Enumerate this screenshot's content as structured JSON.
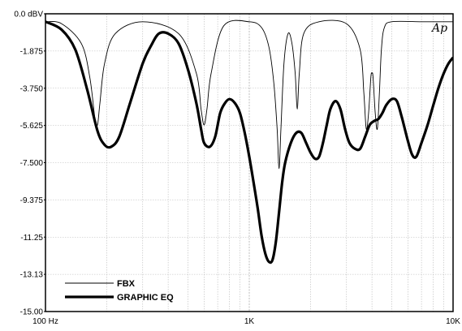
{
  "chart_data": {
    "type": "line",
    "xscale": "log",
    "xlim": [
      100,
      10000
    ],
    "ylim": [
      -15.0,
      0.0
    ],
    "y_tick_labels": [
      "0.0 dBV",
      "-1.875",
      "-3.750",
      "-5.625",
      "-7.500",
      "-9.375",
      "-11.25",
      "-13.13",
      "-15.00"
    ],
    "x_tick_labels": [
      "100 Hz",
      "1K",
      "10K"
    ],
    "grid": true,
    "legend_position": "bottom-left",
    "watermark": "Ap",
    "series": [
      {
        "name": "FBX",
        "style": "thin",
        "x": [
          100,
          120,
          150,
          165,
          175,
          180,
          185,
          195,
          220,
          300,
          450,
          550,
          580,
          600,
          620,
          650,
          750,
          1000,
          1150,
          1250,
          1320,
          1370,
          1400,
          1430,
          1480,
          1550,
          1620,
          1680,
          1720,
          1760,
          1850,
          2200,
          3000,
          3500,
          3650,
          3750,
          3850,
          3950,
          4000,
          4050,
          4150,
          4250,
          4350,
          4450,
          4600,
          5000,
          7000,
          10000
        ],
        "y": [
          -0.4,
          -0.5,
          -1.5,
          -3.2,
          -5.3,
          -5.6,
          -4.5,
          -2.5,
          -1.0,
          -0.4,
          -1.0,
          -3.0,
          -4.8,
          -5.6,
          -4.8,
          -3.0,
          -0.6,
          -0.4,
          -0.7,
          -1.7,
          -3.5,
          -5.8,
          -7.8,
          -5.8,
          -2.5,
          -1.0,
          -1.5,
          -3.0,
          -4.8,
          -3.0,
          -1.0,
          -0.4,
          -0.5,
          -1.8,
          -4.0,
          -5.8,
          -5.0,
          -3.2,
          -3.0,
          -3.2,
          -5.0,
          -5.8,
          -4.0,
          -1.8,
          -0.7,
          -0.4,
          -0.4,
          -0.4
        ]
      },
      {
        "name": "GRAPHIC EQ",
        "style": "thick",
        "x": [
          100,
          120,
          140,
          160,
          180,
          195,
          210,
          230,
          260,
          300,
          330,
          360,
          400,
          450,
          500,
          550,
          580,
          600,
          640,
          680,
          720,
          760,
          800,
          850,
          900,
          950,
          1000,
          1050,
          1100,
          1150,
          1200,
          1250,
          1300,
          1350,
          1400,
          1450,
          1500,
          1600,
          1700,
          1800,
          1900,
          2000,
          2100,
          2200,
          2300,
          2400,
          2500,
          2650,
          2800,
          2950,
          3100,
          3300,
          3500,
          3700,
          3900,
          4100,
          4300,
          4500,
          4700,
          5000,
          5300,
          5600,
          6000,
          6300,
          6600,
          7000,
          7500,
          8000,
          8500,
          9000,
          9500,
          10000
        ],
        "y": [
          -0.4,
          -0.8,
          -1.8,
          -3.8,
          -5.9,
          -6.6,
          -6.7,
          -6.2,
          -4.5,
          -2.5,
          -1.6,
          -1.0,
          -1.0,
          -1.5,
          -2.8,
          -4.5,
          -5.8,
          -6.5,
          -6.7,
          -6.2,
          -5.0,
          -4.5,
          -4.3,
          -4.5,
          -5.0,
          -6.0,
          -7.2,
          -8.5,
          -9.8,
          -11.2,
          -12.1,
          -12.5,
          -12.4,
          -11.5,
          -10.0,
          -8.5,
          -7.5,
          -6.5,
          -6.0,
          -6.0,
          -6.5,
          -7.0,
          -7.3,
          -7.2,
          -6.5,
          -5.6,
          -4.8,
          -4.4,
          -4.8,
          -5.8,
          -6.5,
          -6.8,
          -6.8,
          -6.2,
          -5.6,
          -5.4,
          -5.3,
          -5.0,
          -4.6,
          -4.3,
          -4.4,
          -5.2,
          -6.4,
          -7.1,
          -7.2,
          -6.5,
          -5.6,
          -4.6,
          -3.7,
          -3.0,
          -2.5,
          -2.2
        ]
      }
    ]
  }
}
